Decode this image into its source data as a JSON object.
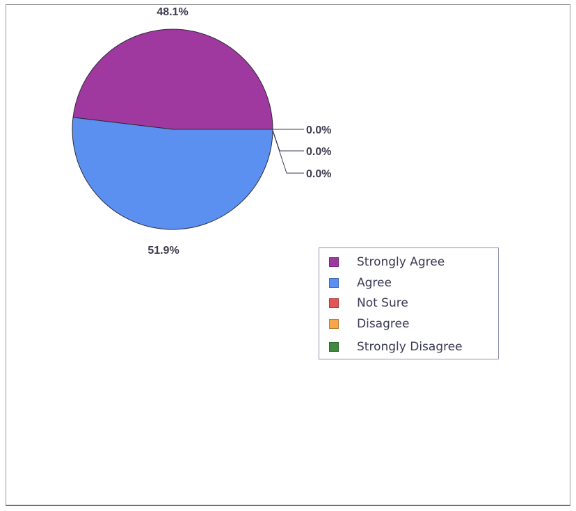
{
  "chart_data": {
    "type": "pie",
    "categories": [
      "Strongly Agree",
      "Agree",
      "Not Sure",
      "Disagree",
      "Strongly Disagree"
    ],
    "values": [
      48.1,
      51.9,
      0.0,
      0.0,
      0.0
    ],
    "value_labels": [
      "48.1%",
      "51.9%",
      "0.0%",
      "0.0%",
      "0.0%"
    ],
    "colors": [
      "#a0399f",
      "#5b8ff0",
      "#e55555",
      "#f9a648",
      "#3f8a3f"
    ],
    "title": "",
    "legend_placement": "right"
  }
}
